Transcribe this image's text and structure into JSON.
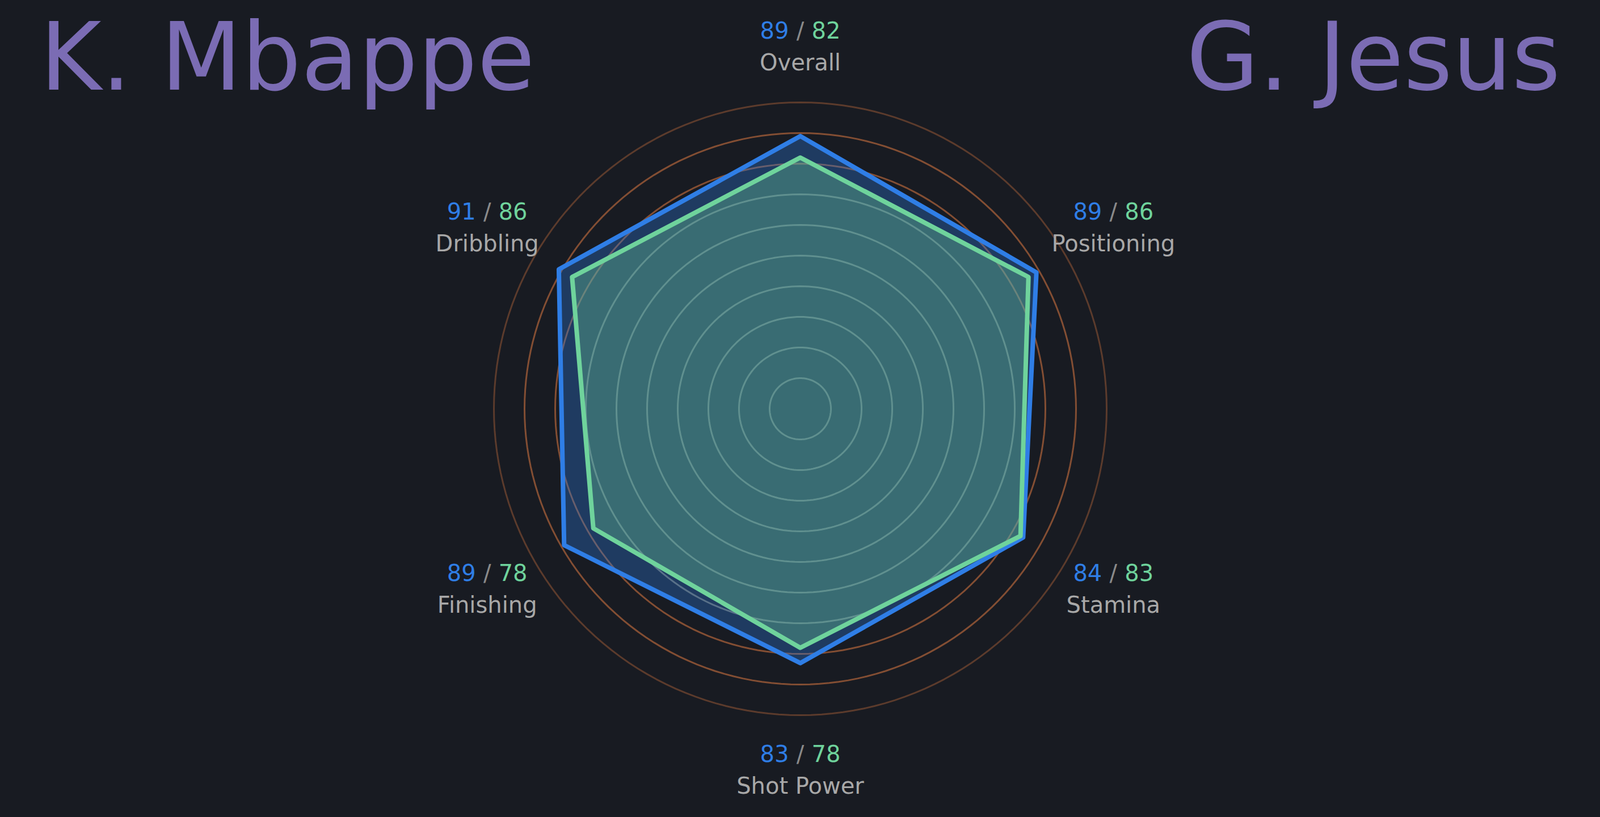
{
  "chart_data": {
    "type": "radar",
    "categories": [
      "Overall",
      "Positioning",
      "Stamina",
      "Shot Power",
      "Finishing",
      "Dribbling"
    ],
    "series": [
      {
        "name": "K. Mbappe",
        "color": "#2f7ee6",
        "values": [
          89,
          89,
          84,
          83,
          89,
          91
        ]
      },
      {
        "name": "G. Jesus",
        "color": "#6fd39c",
        "values": [
          82,
          86,
          83,
          78,
          78,
          86
        ]
      }
    ],
    "value_separator": "/",
    "ylim": [
      0,
      100
    ],
    "yticks": [
      10,
      20,
      30,
      40,
      50,
      60,
      70,
      80,
      90,
      100
    ],
    "grid": true,
    "tick_labels": false,
    "data_labels": true
  }
}
